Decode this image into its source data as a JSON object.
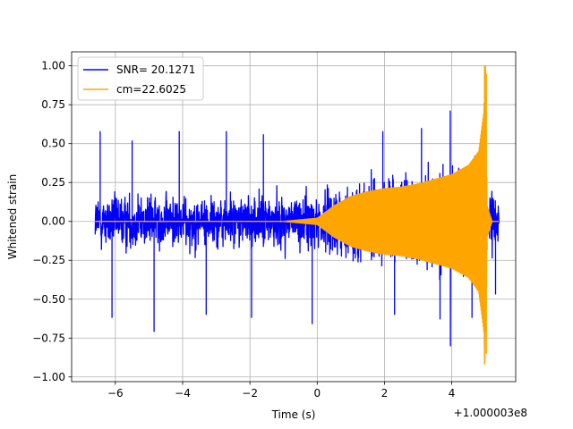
{
  "chart_data": {
    "type": "line",
    "title": "",
    "xlabel": "Time (s)",
    "ylabel": "Whitened strain",
    "x_offset_label": "+1.000003e8",
    "xlim": [
      -7.3,
      5.9
    ],
    "ylim": [
      -1.03,
      1.09
    ],
    "x_ticks": [
      -6,
      -4,
      -2,
      0,
      2,
      4
    ],
    "x_tick_labels": [
      "−6",
      "−4",
      "−2",
      "0",
      "2",
      "4"
    ],
    "y_ticks": [
      -1.0,
      -0.75,
      -0.5,
      -0.25,
      0.0,
      0.25,
      0.5,
      0.75,
      1.0
    ],
    "y_tick_labels": [
      "−1.00",
      "−0.75",
      "−0.50",
      "−0.25",
      "0.00",
      "0.25",
      "0.50",
      "0.75",
      "1.00"
    ],
    "grid": true,
    "legend_position": "top-left",
    "series": [
      {
        "name": "SNR= 20.1271",
        "color": "#0000ff",
        "kind": "whitened data",
        "x_range": [
          -6.6,
          5.4
        ],
        "noise_rms": 0.13,
        "noise_envelope": 0.5,
        "max_positive": 0.71,
        "max_positive_x": 3.95,
        "min_negative": -0.8,
        "min_negative_x": 3.95
      },
      {
        "name": "cm=22.6025",
        "color": "#ffa500",
        "kind": "template",
        "x_range": [
          -6.6,
          5.4
        ],
        "merger_x": 5.0,
        "peak_positive": 1.0,
        "peak_negative": -0.92,
        "envelope_points": [
          [
            -6.6,
            0.0
          ],
          [
            -1.0,
            0.0
          ],
          [
            0.0,
            0.02
          ],
          [
            0.5,
            0.1
          ],
          [
            1.0,
            0.16
          ],
          [
            1.5,
            0.19
          ],
          [
            2.0,
            0.21
          ],
          [
            2.5,
            0.22
          ],
          [
            3.0,
            0.24
          ],
          [
            3.5,
            0.27
          ],
          [
            4.0,
            0.3
          ],
          [
            4.5,
            0.36
          ],
          [
            4.8,
            0.45
          ],
          [
            4.95,
            0.7
          ],
          [
            5.0,
            1.0
          ],
          [
            5.05,
            0.1
          ],
          [
            5.2,
            0.0
          ],
          [
            5.4,
            0.0
          ]
        ]
      }
    ]
  }
}
